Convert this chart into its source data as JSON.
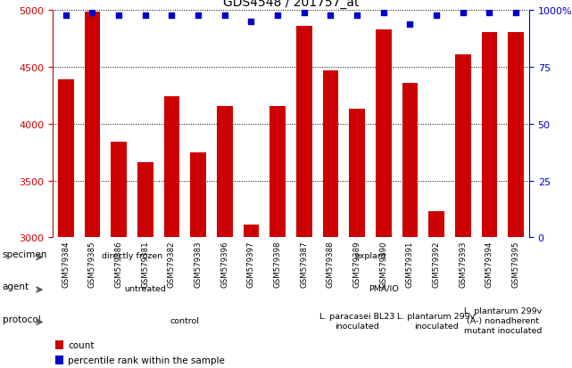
{
  "title": "GDS4548 / 201757_at",
  "samples": [
    "GSM579384",
    "GSM579385",
    "GSM579386",
    "GSM579381",
    "GSM579382",
    "GSM579383",
    "GSM579396",
    "GSM579397",
    "GSM579398",
    "GSM579387",
    "GSM579388",
    "GSM579389",
    "GSM579390",
    "GSM579391",
    "GSM579392",
    "GSM579393",
    "GSM579394",
    "GSM579395"
  ],
  "counts": [
    4390,
    4990,
    3840,
    3660,
    4240,
    3750,
    4160,
    3110,
    4160,
    4860,
    4470,
    4130,
    4830,
    4360,
    3230,
    4610,
    4810,
    4810
  ],
  "percentiles": [
    98,
    99,
    98,
    98,
    98,
    98,
    98,
    95,
    98,
    99,
    98,
    98,
    99,
    94,
    98,
    99,
    99,
    99
  ],
  "bar_color": "#CC0000",
  "dot_color": "#0000CC",
  "ylim_left": [
    3000,
    5000
  ],
  "ylim_right": [
    0,
    100
  ],
  "yticks_left": [
    3000,
    3500,
    4000,
    4500,
    5000
  ],
  "yticks_right": [
    0,
    25,
    50,
    75,
    100
  ],
  "specimen_labels": [
    {
      "text": "directly frozen",
      "start": 0,
      "end": 6,
      "color": "#90EE90"
    },
    {
      "text": "explant",
      "start": 6,
      "end": 18,
      "color": "#55CC55"
    }
  ],
  "agent_labels": [
    {
      "text": "untreated",
      "start": 0,
      "end": 7,
      "color": "#BBBBEE"
    },
    {
      "text": "PMA/IO",
      "start": 7,
      "end": 18,
      "color": "#8888CC"
    }
  ],
  "protocol_labels": [
    {
      "text": "control",
      "start": 0,
      "end": 10,
      "color": "#FFCCCC"
    },
    {
      "text": "L. paracasei BL23\ninoculated",
      "start": 10,
      "end": 13,
      "color": "#FFAAAA"
    },
    {
      "text": "L. plantarum 299v\ninoculated",
      "start": 13,
      "end": 16,
      "color": "#FF9999"
    },
    {
      "text": "L. plantarum 299v\n(A-) nonadherent\nmutant inoculated",
      "start": 16,
      "end": 18,
      "color": "#FF8888"
    }
  ],
  "row_labels": [
    "specimen",
    "agent",
    "protocol"
  ]
}
